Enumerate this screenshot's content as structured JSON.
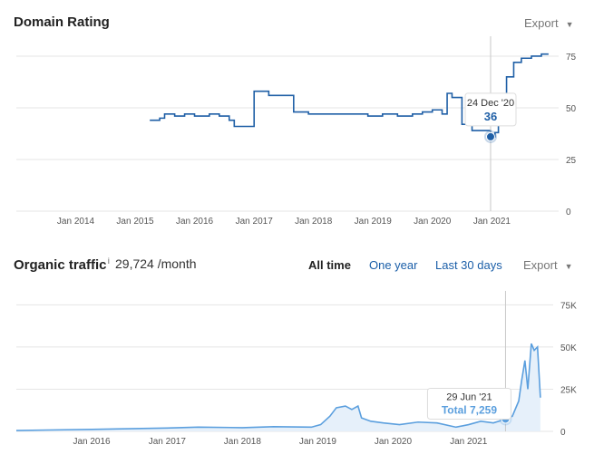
{
  "domain_rating": {
    "title": "Domain Rating",
    "export_label": "Export",
    "tooltip": {
      "date": "24 Dec '20",
      "value": "36"
    }
  },
  "organic_traffic": {
    "title": "Organic traffic",
    "info_mark": "i",
    "value": "29,724 /month",
    "ranges": [
      "All time",
      "One year",
      "Last 30 days"
    ],
    "active_range": "All time",
    "export_label": "Export",
    "tooltip": {
      "date": "29 Jun '21",
      "value": "Total 7,259"
    }
  },
  "colors": {
    "dr_line": "#1f5fa6",
    "traffic_line": "#5b9fde",
    "traffic_fill": "#e6f0fa",
    "grid": "#e5e5e5",
    "link": "#1a5ea8"
  },
  "chart_data": [
    {
      "type": "line",
      "title": "Domain Rating",
      "x_ticks": [
        "Jan 2014",
        "Jan 2015",
        "Jan 2016",
        "Jan 2017",
        "Jan 2018",
        "Jan 2019",
        "Jan 2020",
        "Jan 2021"
      ],
      "y_ticks": [
        "75",
        "50",
        "25",
        "0"
      ],
      "ylim": [
        0,
        82
      ],
      "xlim": [
        "2013-01-01",
        "2022-02-15"
      ],
      "grid": true,
      "series": [
        {
          "x": [
            "2015-04-01",
            "2015-06-01",
            "2015-07-01",
            "2015-09-01",
            "2015-11-01",
            "2016-01-01",
            "2016-04-01",
            "2016-06-01",
            "2016-08-01",
            "2016-09-01",
            "2016-11-01",
            "2017-01-01",
            "2017-04-01",
            "2017-06-01",
            "2017-09-01",
            "2017-12-01",
            "2018-03-01",
            "2018-06-01",
            "2018-09-01",
            "2018-12-01",
            "2019-03-01",
            "2019-06-01",
            "2019-09-01",
            "2019-11-01",
            "2020-01-01",
            "2020-03-01",
            "2020-04-01",
            "2020-05-01",
            "2020-07-01",
            "2020-09-01",
            "2020-11-01",
            "2020-12-24",
            "2021-01-20",
            "2021-02-10",
            "2021-04-01",
            "2021-05-15",
            "2021-07-01",
            "2021-09-01",
            "2021-11-01",
            "2021-12-15"
          ],
          "y": [
            44,
            45,
            47,
            46,
            47,
            46,
            47,
            46,
            44,
            41,
            41,
            58,
            56,
            56,
            48,
            47,
            47,
            47,
            47,
            46,
            47,
            46,
            47,
            48,
            49,
            47,
            57,
            55,
            42,
            39,
            39,
            36,
            38,
            42,
            65,
            72,
            74,
            75,
            76,
            76
          ]
        }
      ],
      "tooltip_point": {
        "x": "2020-12-24",
        "y": 36
      }
    },
    {
      "type": "area",
      "title": "Organic traffic",
      "x_ticks": [
        "Jan 2016",
        "Jan 2017",
        "Jan 2018",
        "Jan 2019",
        "Jan 2020",
        "Jan 2021"
      ],
      "y_ticks": [
        "75K",
        "50K",
        "25K",
        "0"
      ],
      "ylim": [
        0,
        80000
      ],
      "xlim": [
        "2015-01-01",
        "2022-02-15"
      ],
      "grid": true,
      "series": [
        {
          "x": [
            "2015-01-01",
            "2015-06-01",
            "2016-01-01",
            "2016-06-01",
            "2017-01-01",
            "2017-06-01",
            "2018-01-01",
            "2018-06-01",
            "2018-12-01",
            "2019-01-15",
            "2019-03-01",
            "2019-04-01",
            "2019-05-15",
            "2019-06-15",
            "2019-07-15",
            "2019-08-01",
            "2019-09-15",
            "2019-11-15",
            "2020-02-01",
            "2020-05-01",
            "2020-08-01",
            "2020-11-01",
            "2021-01-01",
            "2021-03-01",
            "2021-05-01",
            "2021-06-29",
            "2021-08-01",
            "2021-09-01",
            "2021-09-15",
            "2021-10-01",
            "2021-10-15",
            "2021-11-01",
            "2021-11-15",
            "2021-12-01",
            "2021-12-15"
          ],
          "y": [
            500,
            800,
            1200,
            1500,
            2000,
            2500,
            2200,
            2800,
            2500,
            4000,
            9000,
            14000,
            15000,
            13000,
            15000,
            8000,
            6000,
            5000,
            4000,
            5500,
            5000,
            2500,
            4000,
            6000,
            5000,
            7259,
            9000,
            18000,
            30000,
            42000,
            25000,
            52000,
            48000,
            50000,
            20000
          ]
        }
      ],
      "tooltip_point": {
        "x": "2021-06-29",
        "y": 7259
      }
    }
  ]
}
